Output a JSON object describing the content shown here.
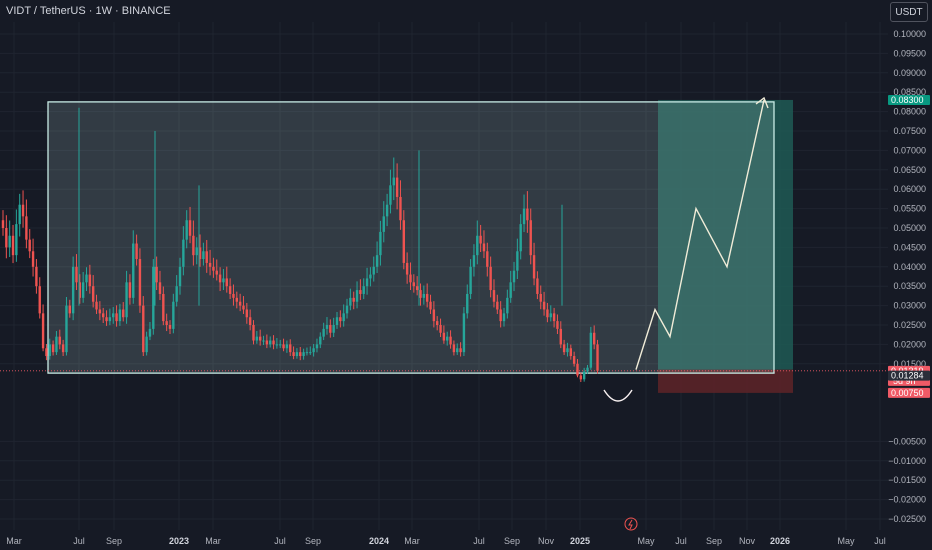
{
  "header": {
    "title": "VIDT / TetherUS · 1W · BINANCE",
    "unit_badge": "USDT"
  },
  "colors": {
    "background": "#161a25",
    "up_candle": "#26a69a",
    "down_candle": "#ef5350",
    "range_box_border": "#c8ece6",
    "target_zone": "#1f5b55",
    "stop_zone": "#5a2328",
    "projection": "#f0ecd8",
    "current_price": "#f05a66",
    "target_price": "#089981"
  },
  "chart_data": {
    "type": "candlestick",
    "y_axis": {
      "min": -0.026,
      "max": 0.104,
      "ticks": [
        0.1,
        0.095,
        0.09,
        0.085,
        0.08,
        0.075,
        0.07,
        0.065,
        0.06,
        0.055,
        0.05,
        0.045,
        0.04,
        0.035,
        0.03,
        0.025,
        0.02,
        0.015,
        -0.005,
        -0.01,
        -0.015,
        -0.02,
        -0.025
      ],
      "tick_labels": [
        "0.10000",
        "0.09500",
        "0.09000",
        "0.08500",
        "0.08000",
        "0.07500",
        "0.07000",
        "0.06500",
        "0.06000",
        "0.05500",
        "0.05000",
        "0.04500",
        "0.04000",
        "0.03500",
        "0.03000",
        "0.02500",
        "0.02000",
        "0.01500",
        "−0.00500",
        "−0.01000",
        "−0.01500",
        "−0.02000",
        "−0.02500"
      ]
    },
    "x_axis": {
      "labels": [
        "Mar",
        "Jul",
        "Sep",
        "2023",
        "Mar",
        "Jul",
        "Sep",
        "2024",
        "Mar",
        "Jul",
        "Sep",
        "Nov",
        "2025",
        "May",
        "Jul",
        "Sep",
        "Nov",
        "2026",
        "May",
        "Jul"
      ],
      "bold": [
        false,
        false,
        false,
        true,
        false,
        false,
        false,
        true,
        false,
        false,
        false,
        false,
        true,
        false,
        false,
        false,
        false,
        true,
        false,
        false
      ]
    },
    "price_tags": {
      "target": {
        "label": "0.08300",
        "value": 0.083
      },
      "current": {
        "label": "0.01319",
        "value": 0.01319,
        "countdown": "5d 9h"
      },
      "entry": {
        "label": "0.01284",
        "value": 0.01284
      },
      "stop": {
        "label": "0.00750",
        "value": 0.0075
      }
    },
    "range_box": {
      "top": 0.0825,
      "bottom": 0.0126
    },
    "target_zone": {
      "top": 0.083,
      "bottom": 0.0135
    },
    "stop_zone": {
      "top": 0.0135,
      "bottom": 0.0075
    },
    "projection_path": [
      0.0135,
      0.029,
      0.022,
      0.055,
      0.04,
      0.083
    ],
    "closes": [
      0.05,
      0.045,
      0.048,
      0.043,
      0.051,
      0.056,
      0.053,
      0.047,
      0.044,
      0.04,
      0.035,
      0.028,
      0.019,
      0.017,
      0.02,
      0.018,
      0.022,
      0.02,
      0.018,
      0.03,
      0.028,
      0.04,
      0.036,
      0.032,
      0.036,
      0.038,
      0.035,
      0.031,
      0.029,
      0.028,
      0.027,
      0.026,
      0.027,
      0.028,
      0.026,
      0.029,
      0.027,
      0.036,
      0.032,
      0.046,
      0.042,
      0.03,
      0.018,
      0.022,
      0.024,
      0.04,
      0.036,
      0.033,
      0.026,
      0.025,
      0.024,
      0.031,
      0.035,
      0.04,
      0.047,
      0.052,
      0.048,
      0.043,
      0.045,
      0.042,
      0.044,
      0.041,
      0.04,
      0.039,
      0.038,
      0.036,
      0.037,
      0.035,
      0.033,
      0.032,
      0.031,
      0.03,
      0.029,
      0.027,
      0.025,
      0.021,
      0.022,
      0.021,
      0.021,
      0.02,
      0.021,
      0.02,
      0.02,
      0.02,
      0.019,
      0.02,
      0.018,
      0.017,
      0.018,
      0.017,
      0.018,
      0.018,
      0.018,
      0.019,
      0.02,
      0.022,
      0.024,
      0.025,
      0.023,
      0.025,
      0.027,
      0.026,
      0.028,
      0.03,
      0.032,
      0.031,
      0.034,
      0.033,
      0.035,
      0.037,
      0.038,
      0.04,
      0.043,
      0.049,
      0.053,
      0.056,
      0.061,
      0.063,
      0.058,
      0.052,
      0.041,
      0.038,
      0.036,
      0.035,
      0.034,
      0.032,
      0.033,
      0.031,
      0.029,
      0.026,
      0.025,
      0.023,
      0.021,
      0.022,
      0.02,
      0.018,
      0.019,
      0.018,
      0.028,
      0.033,
      0.04,
      0.043,
      0.048,
      0.046,
      0.044,
      0.04,
      0.034,
      0.031,
      0.029,
      0.026,
      0.028,
      0.032,
      0.036,
      0.039,
      0.044,
      0.051,
      0.055,
      0.052,
      0.043,
      0.037,
      0.033,
      0.031,
      0.029,
      0.027,
      0.028,
      0.026,
      0.024,
      0.02,
      0.018,
      0.019,
      0.017,
      0.015,
      0.012,
      0.011,
      0.013,
      0.014,
      0.023,
      0.02,
      0.0132
    ]
  },
  "footer": {
    "marker_icon": "lightning-icon"
  }
}
